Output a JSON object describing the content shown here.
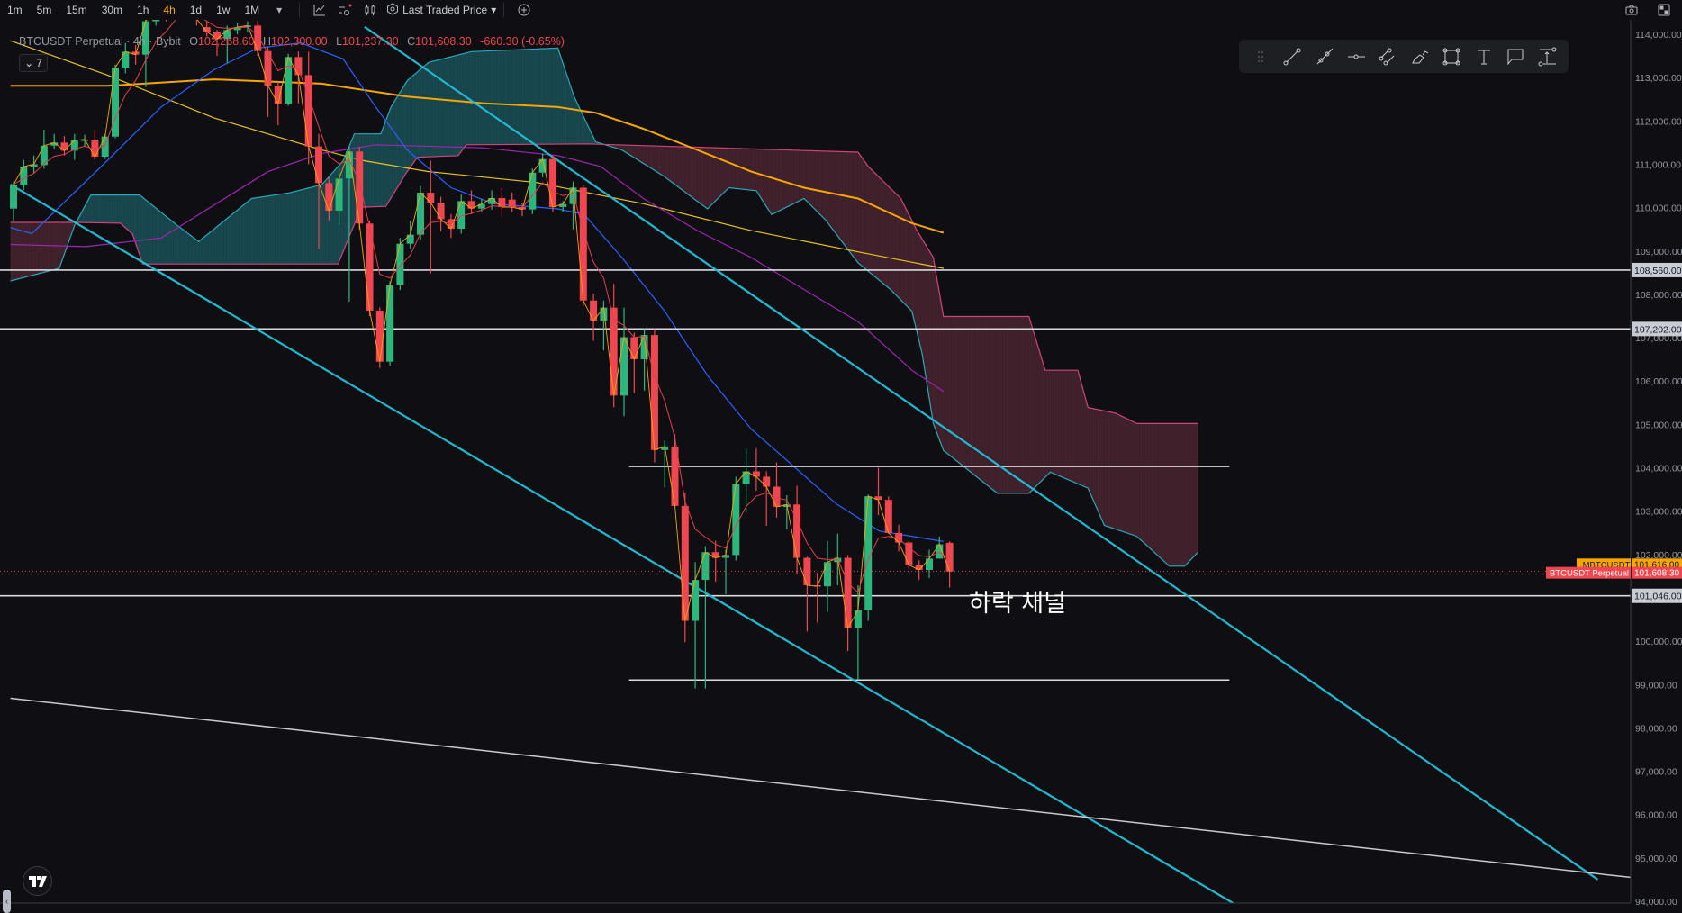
{
  "toolbar": {
    "timeframes": [
      "1m",
      "5m",
      "15m",
      "30m",
      "1h",
      "4h",
      "1d",
      "1w",
      "1M"
    ],
    "active_timeframe": "4h",
    "price_source": "Last Traded Price",
    "icons": [
      "indicators-icon",
      "chart-settings-icon",
      "candle-type-icon",
      "price-source-icon",
      "add-icon",
      "camera-icon",
      "fullscreen-icon"
    ]
  },
  "legend": {
    "symbol": "BTCUSDT Perpetual",
    "interval": "4h",
    "exchange": "Bybit",
    "o_label": "O",
    "open": "102,268.60",
    "h_label": "H",
    "high": "102,300.00",
    "l_label": "L",
    "low": "101,237.30",
    "c_label": "C",
    "close": "101,608.30",
    "change": "-660.30 (-0.65%)",
    "indicator_count": "7"
  },
  "drawing_tools": [
    "drag-handle",
    "trend-line",
    "ray",
    "horizontal-ray",
    "parallel-channel",
    "brush",
    "rectangle",
    "text",
    "callout",
    "price-range"
  ],
  "annotation_text": "하락 채널",
  "colors": {
    "background": "#0f0f13",
    "up": "#2db67c",
    "down": "#f0464f",
    "accent": "#f7a600",
    "trendline": "#22b8cf",
    "ma200": "#f7a600",
    "ma100": "#e6c229",
    "ma50": "#9c27b0",
    "ma20": "#2962ff",
    "cloud_bull": "#1c5b63",
    "cloud_bear": "#4a2530"
  },
  "chart_data": {
    "type": "candlestick",
    "symbol": "BTCUSDT Perpetual",
    "ylim": [
      94000,
      114000
    ],
    "y_ticks": [
      "114,000.00",
      "113,000.00",
      "112,000.00",
      "111,000.00",
      "110,000.00",
      "109,000.00",
      "108,000.00",
      "107,000.00",
      "106,000.00",
      "105,000.00",
      "104,000.00",
      "103,000.00",
      "102,000.00",
      "100,000.00",
      "99,000.00",
      "98,000.00",
      "97,000.00",
      "96,000.00",
      "95,000.00",
      "94,000.00"
    ],
    "candles_ohlc": [
      [
        109978,
        110600,
        109700,
        110531
      ],
      [
        110531,
        111100,
        110400,
        110947
      ],
      [
        110947,
        111200,
        110800,
        111000
      ],
      [
        110981,
        111800,
        110900,
        111431
      ],
      [
        111431,
        111700,
        111350,
        111501
      ],
      [
        111501,
        111650,
        111200,
        111314
      ],
      [
        111314,
        111700,
        111100,
        111556
      ],
      [
        111556,
        111680,
        111400,
        111570
      ],
      [
        111570,
        111800,
        111100,
        111175
      ],
      [
        111175,
        111700,
        111120,
        111639
      ],
      [
        111639,
        113300,
        111600,
        113231
      ],
      [
        113231,
        113800,
        113100,
        113598
      ],
      [
        113598,
        113750,
        113300,
        113529
      ],
      [
        113529,
        114600,
        112782,
        114300
      ],
      [
        114300,
        114700,
        114200,
        114600
      ],
      [
        114600,
        114700,
        114300,
        114500
      ],
      [
        114500,
        115000,
        114400,
        114900
      ],
      [
        114900,
        115000,
        114600,
        114700
      ],
      [
        114700,
        114800,
        114200,
        114350
      ],
      [
        114166,
        114300,
        113950,
        114062
      ],
      [
        114062,
        114100,
        113500,
        113889
      ],
      [
        113889,
        114200,
        113335,
        114097
      ],
      [
        114097,
        114250,
        114000,
        114166
      ],
      [
        114166,
        114300,
        114050,
        114200
      ],
      [
        114200,
        114300,
        113500,
        113612
      ],
      [
        113612,
        113700,
        112089,
        112816
      ],
      [
        112816,
        112900,
        111900,
        112401
      ],
      [
        112401,
        113550,
        112350,
        113474
      ],
      [
        113474,
        113600,
        112400,
        113058
      ],
      [
        113058,
        113600,
        111000,
        111411
      ],
      [
        111411,
        111700,
        109043,
        110566
      ],
      [
        110566,
        110700,
        109700,
        109929
      ],
      [
        109929,
        110900,
        109600,
        110670
      ],
      [
        110670,
        111400,
        107831,
        111293
      ],
      [
        111293,
        111400,
        109500,
        109632
      ],
      [
        109632,
        109700,
        107500,
        107624
      ],
      [
        107624,
        107700,
        106300,
        106447
      ],
      [
        106447,
        108300,
        106350,
        108212
      ],
      [
        108212,
        109300,
        108100,
        109168
      ],
      [
        109168,
        109700,
        109050,
        109375
      ],
      [
        109375,
        110500,
        109250,
        110344
      ],
      [
        110344,
        111085,
        108489,
        110116
      ],
      [
        110116,
        110250,
        109450,
        109735
      ],
      [
        109735,
        109850,
        109300,
        109514
      ],
      [
        109514,
        110300,
        109400,
        110151
      ],
      [
        110151,
        110400,
        109850,
        109978
      ],
      [
        109978,
        110200,
        109900,
        110082
      ],
      [
        110082,
        110400,
        109950,
        110220
      ],
      [
        110220,
        110450,
        109800,
        110012
      ],
      [
        110185,
        110350,
        109900,
        110012
      ],
      [
        110012,
        110100,
        109800,
        109957
      ],
      [
        109957,
        110900,
        109850,
        110808
      ],
      [
        110808,
        111250,
        110700,
        111120
      ],
      [
        111120,
        111200,
        109900,
        110012
      ],
      [
        110012,
        110150,
        109900,
        110082
      ],
      [
        110082,
        110600,
        109500,
        110462
      ],
      [
        110459,
        110525,
        107734,
        107857
      ],
      [
        107857,
        108021,
        106929,
        107389
      ],
      [
        107389,
        107857,
        106708,
        107693
      ],
      [
        107693,
        108243,
        105394,
        105665
      ],
      [
        105665,
        107693,
        105189,
        107011
      ],
      [
        107011,
        107118,
        105723,
        106502
      ],
      [
        106502,
        107200,
        105780,
        107061
      ],
      [
        107061,
        107200,
        104122,
        104409
      ],
      [
        104409,
        104631,
        103548,
        104491
      ],
      [
        104491,
        104778,
        103096,
        103120
      ],
      [
        103120,
        103424,
        99976,
        100469
      ],
      [
        100469,
        101823,
        98909,
        101413
      ],
      [
        101413,
        102193,
        98909,
        102053
      ],
      [
        102053,
        102316,
        101372,
        101922
      ],
      [
        101922,
        102111,
        101084,
        101987
      ],
      [
        101987,
        103794,
        101864,
        103629
      ],
      [
        103629,
        104450,
        102973,
        103917
      ],
      [
        103917,
        104450,
        103465,
        103794
      ],
      [
        103794,
        103917,
        102661,
        103564
      ],
      [
        103564,
        104122,
        102850,
        103096
      ],
      [
        103096,
        103367,
        102578,
        103153
      ],
      [
        103153,
        103588,
        101536,
        101922
      ],
      [
        101922,
        101946,
        100222,
        101290
      ],
      [
        101290,
        101577,
        100428,
        101265
      ],
      [
        101265,
        102316,
        100674,
        101823
      ],
      [
        101823,
        102480,
        101290,
        101922
      ],
      [
        101922,
        101987,
        99771,
        100305
      ],
      [
        100305,
        101290,
        99114,
        100715
      ],
      [
        100715,
        103383,
        100469,
        103342
      ],
      [
        103342,
        103999,
        102907,
        103260
      ],
      [
        103260,
        103342,
        102480,
        102496
      ],
      [
        102496,
        102685,
        102070,
        102275
      ],
      [
        102275,
        102316,
        101659,
        101758
      ],
      [
        101758,
        101864,
        101413,
        101643
      ],
      [
        101643,
        102111,
        101454,
        101905
      ],
      [
        101905,
        102414,
        101905,
        102234
      ],
      [
        102268.6,
        102300,
        101237.3,
        101608.3
      ]
    ],
    "moving_averages": [
      {
        "color": "#f7a600",
        "points": [
          [
            -0.3,
            112810
          ],
          [
            9.2,
            112810
          ],
          [
            19.7,
            112960
          ],
          [
            30.3,
            112860
          ],
          [
            38.7,
            112560
          ],
          [
            46.1,
            112410
          ],
          [
            53.5,
            112320
          ],
          [
            57.2,
            112190
          ],
          [
            61.9,
            111820
          ],
          [
            67.2,
            111330
          ],
          [
            72.5,
            110830
          ],
          [
            77.7,
            110460
          ],
          [
            83,
            110210
          ],
          [
            88.3,
            109640
          ],
          [
            91.4,
            109420
          ]
        ]
      },
      {
        "color": "#e6c229",
        "points": [
          [
            -0.3,
            113850
          ],
          [
            9.2,
            113060
          ],
          [
            19.7,
            112070
          ],
          [
            30.3,
            111330
          ],
          [
            34.5,
            111080
          ],
          [
            40.8,
            110830
          ],
          [
            51.4,
            110580
          ],
          [
            61.9,
            110090
          ],
          [
            72.5,
            109470
          ],
          [
            83,
            108980
          ],
          [
            91.4,
            108600
          ]
        ]
      },
      {
        "color": "#9c27b0",
        "points": [
          [
            -0.3,
            109150
          ],
          [
            7.1,
            109100
          ],
          [
            14.5,
            109300
          ],
          [
            25,
            110830
          ],
          [
            30.3,
            111250
          ],
          [
            35.6,
            111450
          ],
          [
            46.1,
            111380
          ],
          [
            53.5,
            111200
          ],
          [
            57.7,
            110950
          ],
          [
            61.9,
            110210
          ],
          [
            67.2,
            109470
          ],
          [
            72.5,
            108850
          ],
          [
            77.7,
            108110
          ],
          [
            83,
            107370
          ],
          [
            88.3,
            106250
          ],
          [
            91.4,
            105760
          ]
        ]
      },
      {
        "color": "#2962ff",
        "points": [
          [
            -0.3,
            109540
          ],
          [
            1.8,
            109400
          ],
          [
            9.2,
            111080
          ],
          [
            14.5,
            112320
          ],
          [
            19.7,
            113180
          ],
          [
            24,
            113680
          ],
          [
            28.2,
            113800
          ],
          [
            32.4,
            113430
          ],
          [
            35.6,
            112320
          ],
          [
            38.7,
            111330
          ],
          [
            43,
            110460
          ],
          [
            47.2,
            110090
          ],
          [
            53.5,
            109970
          ],
          [
            56.1,
            109840
          ],
          [
            59.8,
            108850
          ],
          [
            64,
            107610
          ],
          [
            68.2,
            106130
          ],
          [
            72.5,
            104890
          ],
          [
            76.7,
            104030
          ],
          [
            80.9,
            103160
          ],
          [
            85.1,
            102540
          ],
          [
            88.3,
            102420
          ],
          [
            91.4,
            102300
          ]
        ]
      }
    ],
    "cloud_span_a": [
      [
        -0.3,
        108310
      ],
      [
        4.5,
        108600
      ],
      [
        6,
        109590
      ],
      [
        7.6,
        110290
      ],
      [
        12.4,
        110290
      ],
      [
        16.1,
        109590
      ],
      [
        18.2,
        109220
      ],
      [
        23.4,
        110210
      ],
      [
        27.1,
        110340
      ],
      [
        30.3,
        110530
      ],
      [
        32.4,
        111080
      ],
      [
        33.5,
        111700
      ],
      [
        36.1,
        111700
      ],
      [
        37.1,
        112320
      ],
      [
        38.7,
        112930
      ],
      [
        40.8,
        113350
      ],
      [
        45,
        113600
      ],
      [
        53.5,
        113680
      ],
      [
        55.1,
        112560
      ],
      [
        57.2,
        111520
      ],
      [
        59.8,
        111330
      ],
      [
        64,
        110710
      ],
      [
        68.2,
        109970
      ],
      [
        70.3,
        110460
      ],
      [
        73,
        110390
      ],
      [
        74.5,
        109840
      ],
      [
        77.7,
        110210
      ],
      [
        79.8,
        109720
      ],
      [
        83,
        108730
      ],
      [
        86.2,
        108110
      ],
      [
        88.3,
        107610
      ],
      [
        89.3,
        106630
      ],
      [
        90.4,
        105020
      ],
      [
        91.4,
        104400
      ],
      [
        96.7,
        103410
      ],
      [
        99.8,
        103410
      ],
      [
        101.9,
        103900
      ],
      [
        105.6,
        103530
      ],
      [
        107.2,
        102670
      ],
      [
        110.4,
        102420
      ],
      [
        113.6,
        101730
      ],
      [
        115.1,
        101730
      ],
      [
        116.4,
        102050
      ]
    ],
    "cloud_span_b": [
      [
        -0.3,
        109660
      ],
      [
        6.2,
        109660
      ],
      [
        10.5,
        109640
      ],
      [
        11.7,
        109390
      ],
      [
        12.7,
        108700
      ],
      [
        31.9,
        108700
      ],
      [
        32.8,
        109220
      ],
      [
        34.2,
        110010
      ],
      [
        36.6,
        110030
      ],
      [
        38.6,
        110800
      ],
      [
        39.7,
        111160
      ],
      [
        43.7,
        111200
      ],
      [
        44.5,
        111450
      ],
      [
        56.4,
        111470
      ],
      [
        83,
        111280
      ],
      [
        84,
        110950
      ],
      [
        87.2,
        110210
      ],
      [
        88.8,
        109470
      ],
      [
        90.4,
        108850
      ],
      [
        91.4,
        107490
      ],
      [
        99.8,
        107490
      ],
      [
        101.4,
        106250
      ],
      [
        104.6,
        106250
      ],
      [
        105.6,
        105390
      ],
      [
        108.3,
        105260
      ],
      [
        110.4,
        105020
      ],
      [
        116.4,
        105020
      ]
    ],
    "horizontal_levels": [
      {
        "price": 108560,
        "label": "108,560.00",
        "from": -2,
        "to": 159
      },
      {
        "price": 107202,
        "label": "107,202.00",
        "from": -2,
        "to": 159
      },
      {
        "price": 101046,
        "label": "101,046.00",
        "from": -2,
        "to": 159
      },
      {
        "price": 104030,
        "from": 60.5,
        "to": 119.5
      },
      {
        "price": 99104,
        "from": 60.5,
        "to": 119.5
      }
    ],
    "trendlines": [
      {
        "color": "#22b8cf",
        "from": [
          -0.3,
          110534
        ],
        "to": [
          120.4,
          93884
        ]
      },
      {
        "color": "#22b8cf",
        "from": [
          34.5,
          114171
        ],
        "to": [
          155.7,
          94502
        ]
      },
      {
        "color": "#c8cad0",
        "from": [
          -0.3,
          98683
        ],
        "to": [
          158.9,
          94552
        ]
      }
    ],
    "price_tags": [
      {
        "name": ".MBTCUSDT",
        "value": "101,616.00",
        "price": 101616,
        "color": "#f7a600"
      },
      {
        "name": "BTCUSDT Perpetual",
        "value": "101,608.30",
        "price": 101608.3,
        "color": "#f0464f"
      }
    ]
  }
}
